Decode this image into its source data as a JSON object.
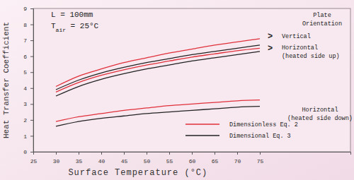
{
  "chart_data": {
    "type": "line",
    "x_label": "Surface Temperature (°C)",
    "y_label": "Heat Transfer Coefficient",
    "x": [
      30,
      35,
      40,
      45,
      50,
      55,
      60,
      65,
      70,
      75
    ],
    "series": [
      {
        "name": "Dimensionless Eq. 2",
        "color": "#e0303a",
        "values": [
          4.1,
          4.75,
          5.2,
          5.6,
          5.9,
          6.2,
          6.45,
          6.7,
          6.9,
          7.1
        ]
      },
      {
        "name": "Dimensional Eq. 3",
        "color": "#222222",
        "values": [
          3.9,
          4.5,
          4.95,
          5.3,
          5.6,
          5.85,
          6.1,
          6.3,
          6.5,
          6.7
        ]
      },
      {
        "name": "Dimensionless Eq. 2",
        "color": "#e0303a",
        "values": [
          3.75,
          4.35,
          4.8,
          5.15,
          5.45,
          5.7,
          5.95,
          6.15,
          6.35,
          6.5
        ]
      },
      {
        "name": "Dimensional Eq. 3",
        "color": "#222222",
        "values": [
          3.5,
          4.1,
          4.55,
          4.9,
          5.2,
          5.45,
          5.7,
          5.9,
          6.1,
          6.3
        ]
      },
      {
        "name": "Dimensionless Eq. 2",
        "color": "#e0303a",
        "values": [
          1.9,
          2.2,
          2.4,
          2.6,
          2.75,
          2.9,
          3.0,
          3.1,
          3.2,
          3.25
        ]
      },
      {
        "name": "Dimensional Eq. 3",
        "color": "#222222",
        "values": [
          1.6,
          1.9,
          2.1,
          2.25,
          2.4,
          2.5,
          2.6,
          2.7,
          2.8,
          2.85
        ]
      }
    ],
    "xlim": [
      25,
      95
    ],
    "xticks": [
      25,
      30,
      35,
      40,
      45,
      50,
      55,
      60,
      65,
      70,
      75
    ],
    "ylim": [
      0,
      9
    ],
    "yticks": [
      0,
      1,
      2,
      3,
      4,
      5,
      6,
      7,
      8,
      9
    ],
    "grid": false,
    "legend": "lower right",
    "annotations": [
      "L  =  100mm",
      [
        "T",
        "air",
        " = 25°C"
      ],
      "Plate",
      "Orientation",
      ">",
      "Vertical",
      ">",
      "Horizontal",
      "(heated side up)",
      "Horizontal",
      "(heated side down)"
    ]
  }
}
